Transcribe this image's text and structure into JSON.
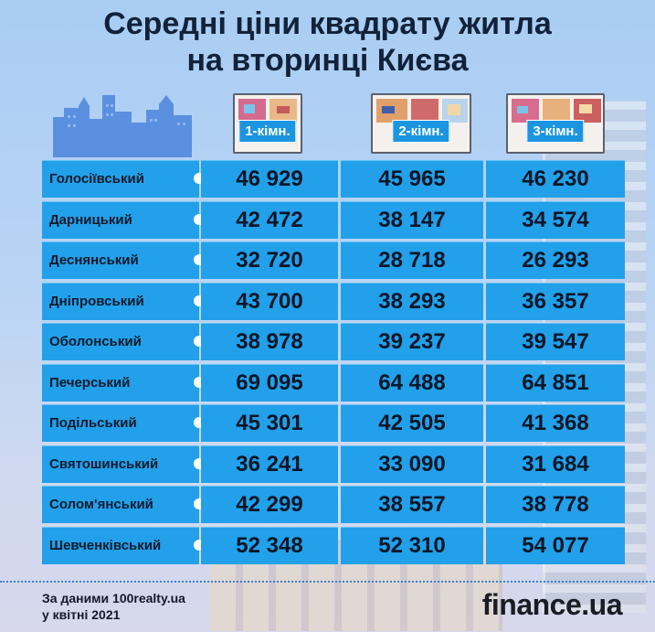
{
  "title": {
    "line1": "Середні ціни квадрату житла",
    "line2": "на вторинці Києва"
  },
  "columns": [
    {
      "label": "1-кімн."
    },
    {
      "label": "2-кімн."
    },
    {
      "label": "3-кімн."
    }
  ],
  "colors": {
    "row_fill": "#22a0ea",
    "label_fill": "#1c95e0",
    "title_text": "#12223a",
    "value_text": "#0b1626"
  },
  "chart_data": {
    "type": "table",
    "title": "Середні ціни квадрату житла на вторинці Києва",
    "columns": [
      "1-кімн.",
      "2-кімн.",
      "3-кімн."
    ],
    "rows": [
      {
        "district": "Голосіївський",
        "values": [
          "46 929",
          "45 965",
          "46 230"
        ]
      },
      {
        "district": "Дарницький",
        "values": [
          "42 472",
          "38 147",
          "34 574"
        ]
      },
      {
        "district": "Деснянський",
        "values": [
          "32 720",
          "28 718",
          "26 293"
        ]
      },
      {
        "district": "Дніпровський",
        "values": [
          "43 700",
          "38 293",
          "36 357"
        ]
      },
      {
        "district": "Оболонський",
        "values": [
          "38 978",
          "39 237",
          "39 547"
        ]
      },
      {
        "district": "Печерський",
        "values": [
          "69 095",
          "64 488",
          "64 851"
        ]
      },
      {
        "district": "Подільський",
        "values": [
          "45 301",
          "42 505",
          "41 368"
        ]
      },
      {
        "district": "Святошинський",
        "values": [
          "36 241",
          "33 090",
          "31 684"
        ]
      },
      {
        "district": "Солом'янський",
        "values": [
          "42 299",
          "38 557",
          "38 778"
        ]
      },
      {
        "district": "Шевченківський",
        "values": [
          "52 348",
          "52 310",
          "54 077"
        ]
      }
    ]
  },
  "footer": {
    "source_line1": "За даними 100realty.ua",
    "source_line2": "у квітні 2021",
    "brand": "finance.ua"
  }
}
